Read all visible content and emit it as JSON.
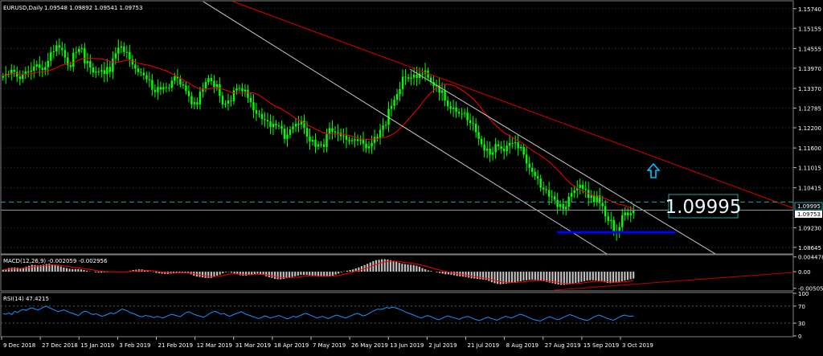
{
  "chart_data": {
    "type": "candlestick",
    "symbol_header": "EURUSD,Daily",
    "ohlc_header": "1.09548 1.09892 1.09541 1.09753",
    "price_panel": {
      "y_ticks": [
        "1.15740",
        "1.15155",
        "1.14555",
        "1.13970",
        "1.13370",
        "1.12785",
        "1.12200",
        "1.11600",
        "1.11015",
        "1.10415",
        "1.09230",
        "1.08645"
      ],
      "ylim": [
        1.0845,
        1.1595
      ],
      "last_price": "1.09753",
      "level_price": "1.09995",
      "big_label": "1.09995",
      "closes": [
        1.1374,
        1.138,
        1.1379,
        1.1392,
        1.1386,
        1.1372,
        1.1365,
        1.1379,
        1.1387,
        1.1387,
        1.139,
        1.1402,
        1.1408,
        1.1398,
        1.1392,
        1.14,
        1.1419,
        1.1445,
        1.1447,
        1.1465,
        1.1458,
        1.1451,
        1.1429,
        1.1406,
        1.1401,
        1.1443,
        1.1445,
        1.1454,
        1.1457,
        1.1412,
        1.1418,
        1.1399,
        1.1384,
        1.1387,
        1.1387,
        1.1391,
        1.138,
        1.1401,
        1.1386,
        1.1426,
        1.1441,
        1.1458,
        1.1462,
        1.1445,
        1.1445,
        1.1423,
        1.1408,
        1.1396,
        1.1386,
        1.1384,
        1.1376,
        1.1364,
        1.1362,
        1.1333,
        1.1326,
        1.1341,
        1.1334,
        1.1341,
        1.1339,
        1.1339,
        1.136,
        1.1373,
        1.1367,
        1.1349,
        1.1346,
        1.1329,
        1.1314,
        1.129,
        1.1296,
        1.1289,
        1.1327,
        1.1337,
        1.1356,
        1.1368,
        1.1359,
        1.1341,
        1.1349,
        1.1315,
        1.1289,
        1.1292,
        1.1301,
        1.1299,
        1.1331,
        1.1337,
        1.1338,
        1.1328,
        1.1333,
        1.1309,
        1.1296,
        1.1272,
        1.1262,
        1.1261,
        1.1246,
        1.1243,
        1.1239,
        1.1222,
        1.1232,
        1.1227,
        1.1225,
        1.1217,
        1.1187,
        1.1199,
        1.1215,
        1.1224,
        1.1232,
        1.123,
        1.1241,
        1.1219,
        1.1194,
        1.1179,
        1.1184,
        1.1164,
        1.1171,
        1.1171,
        1.1163,
        1.1201,
        1.1219,
        1.1209,
        1.1206,
        1.1205,
        1.1195,
        1.1197,
        1.1184,
        1.118,
        1.1183,
        1.1186,
        1.1181,
        1.1185,
        1.1173,
        1.1159,
        1.1165,
        1.1175,
        1.1193,
        1.1188,
        1.1214,
        1.1227,
        1.1229,
        1.1276,
        1.1285,
        1.1303,
        1.132,
        1.1335,
        1.1372,
        1.137,
        1.1366,
        1.1369,
        1.1378,
        1.1368,
        1.1381,
        1.1381,
        1.139,
        1.1369,
        1.1356,
        1.1344,
        1.1346,
        1.1324,
        1.1331,
        1.1301,
        1.1284,
        1.1276,
        1.128,
        1.1267,
        1.1262,
        1.1262,
        1.1265,
        1.1242,
        1.1234,
        1.1232,
        1.1207,
        1.1187,
        1.1171,
        1.1152,
        1.1158,
        1.114,
        1.1147,
        1.1171,
        1.1165,
        1.1158,
        1.115,
        1.1167,
        1.1175,
        1.1175,
        1.1177,
        1.1159,
        1.1163,
        1.114,
        1.1114,
        1.1101,
        1.1089,
        1.1076,
        1.1069,
        1.1042,
        1.1037,
        1.1035,
        1.1015,
        1.1016,
        1.1006,
        1.0985,
        1.0993,
        1.0978,
        1.0985,
        1.1015,
        1.1026,
        1.1034,
        1.1041,
        1.105,
        1.1038,
        1.1035,
        1.1012,
        1.1019,
        1.0999,
        1.1019,
        1.0996,
        1.0987,
        1.0957,
        1.0943,
        1.0946,
        1.091,
        1.0907,
        1.0925,
        1.096,
        1.0968,
        1.096,
        1.0966,
        1.0975
      ]
    },
    "macd_panel": {
      "label": "MACD(12,26,9) -0.002059 -0.002956",
      "y_ticks": [
        "0.004478",
        "0.00",
        "-0.00505"
      ],
      "ylim": [
        -0.0056,
        0.0049
      ],
      "histogram": [
        0.0006,
        0.0008,
        0.0011,
        0.0012,
        0.0013,
        0.0012,
        0.0011,
        0.0012,
        0.0015,
        0.0018,
        0.0021,
        0.002,
        0.0019,
        0.002,
        0.0021,
        0.0023,
        0.0024,
        0.0022,
        0.0021,
        0.0018,
        0.0016,
        0.0013,
        0.0011,
        0.0009,
        0.0008,
        0.0008,
        0.0008,
        0.0007,
        0.0005,
        0.0003,
        0.0001,
        0.0,
        -0.0002,
        -0.0003,
        -0.0003,
        -0.0002,
        -0.0002,
        -0.0001,
        -0.0001,
        -0.0001,
        0.0,
        -0.0001,
        0.0,
        0.0001,
        0.0003,
        0.0005,
        0.0006,
        0.0007,
        0.0007,
        0.0005,
        0.0003,
        0.0001,
        -0.0001,
        -0.0004,
        -0.0005,
        -0.0006,
        -0.0007,
        -0.0007,
        -0.0006,
        -0.0005,
        -0.0004,
        -0.0003,
        -0.0002,
        -0.0003,
        -0.0005,
        -0.0008,
        -0.0012,
        -0.0015,
        -0.0016,
        -0.0017,
        -0.0019,
        -0.0019,
        -0.0019,
        -0.0016,
        -0.0012,
        -0.0009,
        -0.0005,
        -0.0002,
        -0.0001,
        -0.0003,
        -0.0005,
        -0.0008,
        -0.0011,
        -0.0012,
        -0.0012,
        -0.001,
        -0.0009,
        -0.0007,
        -0.0006,
        -0.0007,
        -0.001,
        -0.0014,
        -0.0017,
        -0.0019,
        -0.0022,
        -0.0023,
        -0.0023,
        -0.0022,
        -0.002,
        -0.0017,
        -0.0016,
        -0.0014,
        -0.0012,
        -0.001,
        -0.001,
        -0.001,
        -0.0011,
        -0.0012,
        -0.0013,
        -0.0015,
        -0.0015,
        -0.0015,
        -0.0015,
        -0.0014,
        -0.0012,
        -0.0009,
        -0.0006,
        -0.0002,
        0.0001,
        0.0003,
        0.0005,
        0.0007,
        0.001,
        0.0013,
        0.0017,
        0.002,
        0.0024,
        0.0028,
        0.0032,
        0.0035,
        0.0036,
        0.0038,
        0.0038,
        0.0037,
        0.0035,
        0.0033,
        0.003,
        0.0027,
        0.0024,
        0.0023,
        0.0022,
        0.0021,
        0.002,
        0.0018,
        0.0015,
        0.0011,
        0.0008,
        0.0004,
        0.0002,
        0.0,
        -0.0002,
        -0.0004,
        -0.0006,
        -0.0008,
        -0.0008,
        -0.0009,
        -0.0011,
        -0.0013,
        -0.0014,
        -0.0015,
        -0.0016,
        -0.0018,
        -0.002,
        -0.0021,
        -0.0022,
        -0.0023,
        -0.0024,
        -0.0025,
        -0.0028,
        -0.0032,
        -0.0035,
        -0.0037,
        -0.0038,
        -0.0037,
        -0.0036,
        -0.0035,
        -0.0034,
        -0.0032,
        -0.003,
        -0.0029,
        -0.0027,
        -0.0026,
        -0.0025,
        -0.0024,
        -0.0025,
        -0.0026,
        -0.0027,
        -0.0029,
        -0.0031,
        -0.0033,
        -0.0035,
        -0.0037,
        -0.0039,
        -0.004,
        -0.004,
        -0.0039,
        -0.0038,
        -0.0036,
        -0.0034,
        -0.0033,
        -0.0031,
        -0.0029,
        -0.0027,
        -0.0026,
        -0.0026,
        -0.0027,
        -0.0028,
        -0.003,
        -0.0032,
        -0.0034,
        -0.0035,
        -0.0034,
        -0.0033,
        -0.0031,
        -0.0029,
        -0.0027,
        -0.0025,
        -0.0023,
        -0.0021
      ]
    },
    "rsi_panel": {
      "label": "RSI(14) 47.4215",
      "y_ticks": [
        "100",
        "70",
        "30",
        "0"
      ],
      "ylim": [
        0,
        100
      ],
      "values": [
        52,
        51,
        54,
        50,
        58,
        55,
        60,
        62,
        60,
        64,
        66,
        63,
        61,
        64,
        68,
        70,
        66,
        63,
        60,
        57,
        59,
        61,
        58,
        55,
        53,
        50,
        48,
        54,
        58,
        57,
        53,
        50,
        52,
        49,
        46,
        48,
        51,
        54,
        52,
        55,
        59,
        63,
        61,
        58,
        54,
        52,
        49,
        46,
        45,
        48,
        47,
        45,
        43,
        46,
        44,
        42,
        45,
        48,
        51,
        49,
        47,
        45,
        50,
        55,
        57,
        53,
        50,
        48,
        46,
        44,
        47,
        52,
        56,
        58,
        55,
        51,
        53,
        49,
        46,
        49,
        52,
        54,
        57,
        53,
        50,
        48,
        45,
        43,
        41,
        43,
        47,
        45,
        42,
        44,
        46,
        48,
        45,
        42,
        40,
        43,
        46,
        44,
        47,
        50,
        53,
        51,
        48,
        45,
        42,
        44,
        46,
        43,
        41,
        44,
        47,
        49,
        46,
        44,
        42,
        45,
        48,
        51,
        53,
        50,
        47,
        49,
        53,
        57,
        60,
        63,
        62,
        64,
        67,
        65,
        68,
        66,
        64,
        61,
        58,
        55,
        52,
        50,
        47,
        44,
        42,
        45,
        48,
        46,
        43,
        40,
        38,
        41,
        44,
        47,
        45,
        43,
        41,
        39,
        42,
        44,
        46,
        43,
        40,
        38,
        36,
        39,
        42,
        44,
        41,
        39,
        37,
        40,
        43,
        46,
        44,
        42,
        45,
        48,
        51,
        49,
        46,
        43,
        40,
        38,
        36,
        35,
        39,
        42,
        45,
        43,
        40,
        38,
        41,
        44,
        47,
        50,
        48,
        45,
        42,
        40,
        38,
        36,
        39,
        43,
        46,
        49,
        47,
        44,
        41,
        39,
        37,
        40,
        44,
        47,
        49,
        47,
        46,
        47
      ],
      "levels": [
        70,
        30
      ]
    },
    "x_ticks": [
      "9 Dec 2018",
      "27 Dec 2018",
      "15 Jan 2019",
      "3 Feb 2019",
      "21 Feb 2019",
      "12 Mar 2019",
      "31 Mar 2019",
      "18 Apr 2019",
      "7 May 2019",
      "26 May 2019",
      "13 Jun 2019",
      "2 Jul 2019",
      "21 Jul 2019",
      "8 Aug 2019",
      "27 Aug 2019",
      "15 Sep 2019",
      "3 Oct 2019"
    ],
    "colors": {
      "background": "#000000",
      "bull_candle": "#00ff00",
      "bear_candle": "#00ff00",
      "moving_average": "#ff0000",
      "trend_line_red": "#c00000",
      "channel_lines": "#c8c8c8",
      "support_line": "#0000ff",
      "level_line": "#2aa0a0",
      "arrow": "#00c0ff",
      "macd_histogram": "#c0c0c0",
      "rsi_line": "#1e90ff",
      "axis_text": "#ffffff",
      "grid": "#3a3a3a"
    }
  }
}
